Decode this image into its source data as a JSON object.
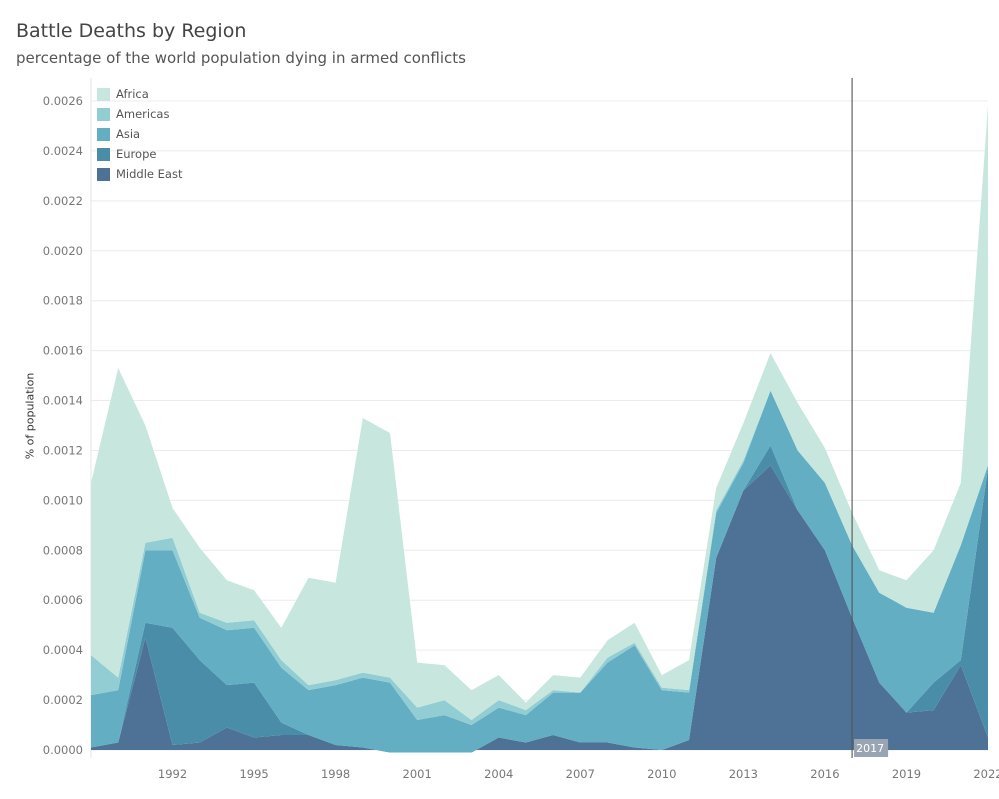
{
  "header": {
    "title": "Battle Deaths by Region",
    "subtitle": "percentage of the world population dying in armed conflicts"
  },
  "chart_data": {
    "type": "area",
    "stacked": true,
    "title": "Battle Deaths by Region",
    "subtitle": "percentage of the world population dying in armed conflicts",
    "xlabel": "",
    "ylabel": "% of population",
    "xlim": [
      1989,
      2022
    ],
    "ylim": [
      0,
      0.0026
    ],
    "grid": true,
    "legend_position": "top-left",
    "x_ticks": [
      1992,
      1995,
      1998,
      2001,
      2004,
      2007,
      2010,
      2013,
      2016,
      2019,
      2022
    ],
    "y_ticks": [
      "0.0000",
      "0.0002",
      "0.0004",
      "0.0006",
      "0.0008",
      "0.0010",
      "0.0012",
      "0.0014",
      "0.0016",
      "0.0018",
      "0.0020",
      "0.0022",
      "0.0024",
      "0.0026"
    ],
    "reference_line": {
      "x": 2017,
      "label": "2017"
    },
    "x": [
      1989,
      1990,
      1991,
      1992,
      1993,
      1994,
      1995,
      1996,
      1997,
      1998,
      1999,
      2000,
      2001,
      2002,
      2003,
      2004,
      2005,
      2006,
      2007,
      2008,
      2009,
      2010,
      2011,
      2012,
      2013,
      2014,
      2015,
      2016,
      2017,
      2018,
      2019,
      2020,
      2021,
      2022
    ],
    "series": [
      {
        "name": "Middle East",
        "color": "#4e7295",
        "values": [
          1e-05,
          3e-05,
          0.00045,
          2e-05,
          3e-05,
          9e-05,
          5e-05,
          6e-05,
          6e-05,
          2e-05,
          1e-05,
          -1e-05,
          -1e-05,
          -1e-05,
          -1e-05,
          5e-05,
          3e-05,
          6e-05,
          3e-05,
          3e-05,
          1e-05,
          0.0,
          4e-05,
          0.00077,
          0.00104,
          0.00114,
          0.00096,
          0.0008,
          0.00053,
          0.00027,
          0.00015,
          0.00016,
          0.00034,
          5e-05
        ]
      },
      {
        "name": "Europe",
        "color": "#4a8da8",
        "values": [
          0.0,
          0.0,
          6e-05,
          0.00047,
          0.00033,
          0.00017,
          0.00022,
          5e-05,
          0.0,
          0.0,
          0.0,
          0.0,
          0.0,
          0.0,
          0.0,
          0.0,
          0.0,
          0.0,
          0.0,
          0.0,
          0.0,
          0.0,
          0.0,
          0.0,
          0.0,
          8e-05,
          0.0,
          0.0,
          0.0,
          0.0,
          0.0,
          0.00011,
          2e-05,
          0.00108
        ]
      },
      {
        "name": "Asia",
        "color": "#63aec3",
        "values": [
          0.00021,
          0.00021,
          0.00029,
          0.00031,
          0.00017,
          0.00022,
          0.00022,
          0.00022,
          0.00018,
          0.00024,
          0.00028,
          0.00028,
          0.00013,
          0.00015,
          0.00011,
          0.00012,
          0.00011,
          0.00017,
          0.0002,
          0.00032,
          0.00041,
          0.00024,
          0.00019,
          0.00018,
          0.00011,
          0.00022,
          0.00024,
          0.00027,
          0.00029,
          0.00036,
          0.00042,
          0.00028,
          0.00046,
          1e-05
        ]
      },
      {
        "name": "Americas",
        "color": "#92cdd4",
        "values": [
          0.00016,
          5e-05,
          3e-05,
          5e-05,
          2e-05,
          3e-05,
          3e-05,
          3e-05,
          2e-05,
          2e-05,
          2e-05,
          2e-05,
          5e-05,
          6e-05,
          2e-05,
          3e-05,
          2e-05,
          1e-05,
          0.0,
          2e-05,
          1e-05,
          1e-05,
          1e-05,
          1e-05,
          1e-05,
          0.0,
          0.0,
          0.0,
          0.0,
          0.0,
          0.0,
          0.0,
          0.0,
          0.0
        ]
      },
      {
        "name": "Africa",
        "color": "#c7e7de",
        "values": [
          0.00069,
          0.00124,
          0.00047,
          0.00012,
          0.00026,
          0.00017,
          0.00012,
          0.00013,
          0.00043,
          0.00039,
          0.00102,
          0.00098,
          0.00018,
          0.00014,
          0.00012,
          0.0001,
          3e-05,
          6e-05,
          6e-05,
          7e-05,
          8e-05,
          5e-05,
          0.00012,
          9e-05,
          0.00015,
          0.00015,
          0.00019,
          0.00014,
          0.00013,
          9e-05,
          0.00011,
          0.00025,
          0.00025,
          0.00144
        ]
      }
    ]
  }
}
